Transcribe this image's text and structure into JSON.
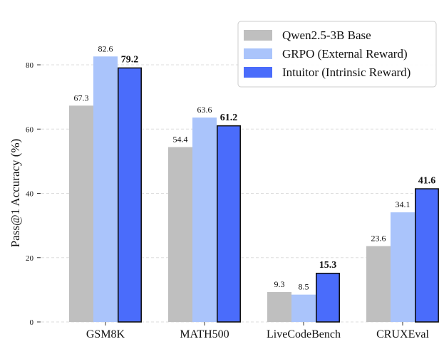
{
  "chart_data": {
    "type": "bar",
    "title": "",
    "xlabel": "",
    "ylabel": "Pass@1 Accuracy (%)",
    "ylim": [
      0,
      88
    ],
    "yticks": [
      0,
      20,
      40,
      60,
      80
    ],
    "grid": "y-dashed",
    "legend_position": "top-right",
    "categories": [
      "GSM8K",
      "MATH500",
      "LiveCodeBench",
      "CRUXEval"
    ],
    "series": [
      {
        "name": "Qwen2.5-3B Base",
        "color": "#bfbfbf",
        "values": [
          67.3,
          54.4,
          9.3,
          23.6
        ],
        "labels": [
          "67.3",
          "54.4",
          "9.3",
          "23.6"
        ],
        "bold": false,
        "outline": false
      },
      {
        "name": "GRPO (External Reward)",
        "color": "#aac4fb",
        "values": [
          82.6,
          63.6,
          8.5,
          34.1
        ],
        "labels": [
          "82.6",
          "63.6",
          "8.5",
          "34.1"
        ],
        "bold": false,
        "outline": false
      },
      {
        "name": "Intuitor (Intrinsic Reward)",
        "color": "#4a6cfb",
        "values": [
          79.2,
          61.2,
          15.3,
          41.6
        ],
        "labels": [
          "79.2",
          "61.2",
          "15.3",
          "41.6"
        ],
        "bold": true,
        "outline": true
      }
    ]
  }
}
